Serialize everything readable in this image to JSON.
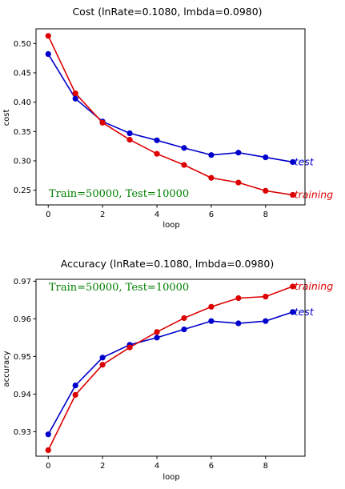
{
  "chart_data": [
    {
      "type": "line",
      "title": "Cost (lnRate=0.1080, lmbda=0.0980)",
      "xlabel": "loop",
      "ylabel": "cost",
      "xlim": [
        -0.45,
        9.45
      ],
      "ylim": [
        0.225,
        0.525
      ],
      "xticks": [
        0,
        2,
        4,
        6,
        8
      ],
      "yticks": [
        0.25,
        0.3,
        0.35,
        0.4,
        0.45,
        0.5
      ],
      "ytick_labels": [
        "0.25",
        "0.30",
        "0.35",
        "0.40",
        "0.45",
        "0.50"
      ],
      "x": [
        0,
        1,
        2,
        3,
        4,
        5,
        6,
        7,
        8,
        9
      ],
      "series": [
        {
          "name": "test",
          "color": "#0000cc",
          "values": [
            0.482,
            0.406,
            0.367,
            0.347,
            0.335,
            0.322,
            0.31,
            0.314,
            0.306,
            0.298
          ]
        },
        {
          "name": "training",
          "color": "#dd0000",
          "values": [
            0.513,
            0.415,
            0.365,
            0.336,
            0.312,
            0.293,
            0.271,
            0.263,
            0.249,
            0.242
          ]
        }
      ],
      "annotation": {
        "text": "Train=50000, Test=10000",
        "color": "#008000",
        "position": "bottom-left"
      },
      "grid": false
    },
    {
      "type": "line",
      "title": "Accuracy (lnRate=0.1080, lmbda=0.0980)",
      "xlabel": "loop",
      "ylabel": "accuracy",
      "xlim": [
        -0.45,
        9.45
      ],
      "ylim": [
        0.9235,
        0.9705
      ],
      "xticks": [
        0,
        2,
        4,
        6,
        8
      ],
      "yticks": [
        0.93,
        0.94,
        0.95,
        0.96,
        0.97
      ],
      "ytick_labels": [
        "0.93",
        "0.94",
        "0.95",
        "0.96",
        "0.97"
      ],
      "x": [
        0,
        1,
        2,
        3,
        4,
        5,
        6,
        7,
        8,
        9
      ],
      "series": [
        {
          "name": "test",
          "color": "#0000cc",
          "values": [
            0.9293,
            0.9423,
            0.9497,
            0.9531,
            0.955,
            0.9572,
            0.9594,
            0.9588,
            0.9594,
            0.9618
          ]
        },
        {
          "name": "training",
          "color": "#dd0000",
          "values": [
            0.9251,
            0.9398,
            0.9478,
            0.9524,
            0.9565,
            0.9602,
            0.9632,
            0.9655,
            0.9659,
            0.9686
          ]
        }
      ],
      "annotation": {
        "text": "Train=50000, Test=10000",
        "color": "#008000",
        "position": "top-left"
      },
      "grid": false
    }
  ]
}
